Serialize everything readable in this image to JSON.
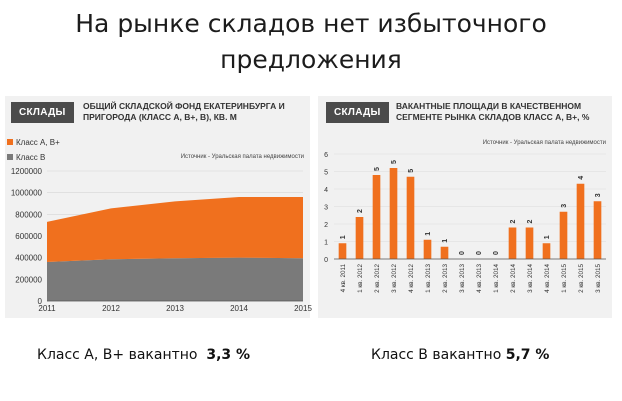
{
  "page_title": "На рынке складов нет избыточного предложения",
  "chart_data": [
    {
      "type": "area",
      "tag": "СКЛАДЫ",
      "title": "ОБЩИЙ СКЛАДСКОЙ ФОНД ЕКАТЕРИНБУРГА И ПРИГОРОДА (КЛАСС А, В+, В), КВ. М",
      "source": "Источник - Уральская палата недвижимости",
      "x": [
        2011,
        2012,
        2013,
        2014,
        2015
      ],
      "x_ticks": [
        "2011",
        "2012",
        "2013",
        "2014",
        "2015"
      ],
      "y_ticks": [
        "0",
        "200000",
        "400000",
        "600000",
        "800000",
        "1000000",
        "1200000"
      ],
      "ylim": [
        0,
        1200000
      ],
      "stacked": true,
      "series": [
        {
          "name": "Класс В",
          "color": "#7a7a7a",
          "values": [
            360000,
            385000,
            395000,
            400000,
            395000
          ]
        },
        {
          "name": "Класс А, В+",
          "color": "#f0701e",
          "values": [
            370000,
            470000,
            525000,
            560000,
            565000
          ]
        }
      ]
    },
    {
      "type": "bar",
      "tag": "СКЛАДЫ",
      "title": "ВАКАНТНЫЕ ПЛОЩАДИ В КАЧЕСТВЕННОМ СЕГМЕНТЕ РЫНКА СКЛАДОВ  КЛАСС А, В+,        %",
      "source": "Источник - Уральская палата недвижимости",
      "categories": [
        "4 кв. 2011",
        "1 кв. 2012",
        "2 кв. 2012",
        "3 кв. 2012",
        "4 кв. 2012",
        "1 кв. 2013",
        "2 кв. 2013",
        "3 кв. 2013",
        "4 кв. 2013",
        "1 кв. 2014",
        "2 кв. 2014",
        "3 кв. 2014",
        "4 кв. 2014",
        "1 кв. 2015",
        "2 кв. 2015",
        "3 кв. 2015"
      ],
      "values": [
        0.9,
        2.4,
        4.8,
        5.2,
        4.7,
        1.1,
        0.7,
        0,
        0,
        0,
        1.8,
        1.8,
        0.9,
        2.7,
        4.3,
        3.3
      ],
      "data_labels": [
        "1",
        "2",
        "5",
        "5",
        "5",
        "1",
        "1",
        "0",
        "0",
        "0",
        "2",
        "2",
        "1",
        "3",
        "4",
        "3"
      ],
      "y_ticks": [
        "0",
        "1",
        "2",
        "3",
        "4",
        "5",
        "6"
      ],
      "ylim": [
        0,
        6
      ],
      "color": "#f0701e"
    }
  ],
  "footer": {
    "left_text": "Класс А, В+ вакантно",
    "left_value": "3,3 %",
    "right_text": "Класс В вакантно",
    "right_value": "5,7 %"
  }
}
